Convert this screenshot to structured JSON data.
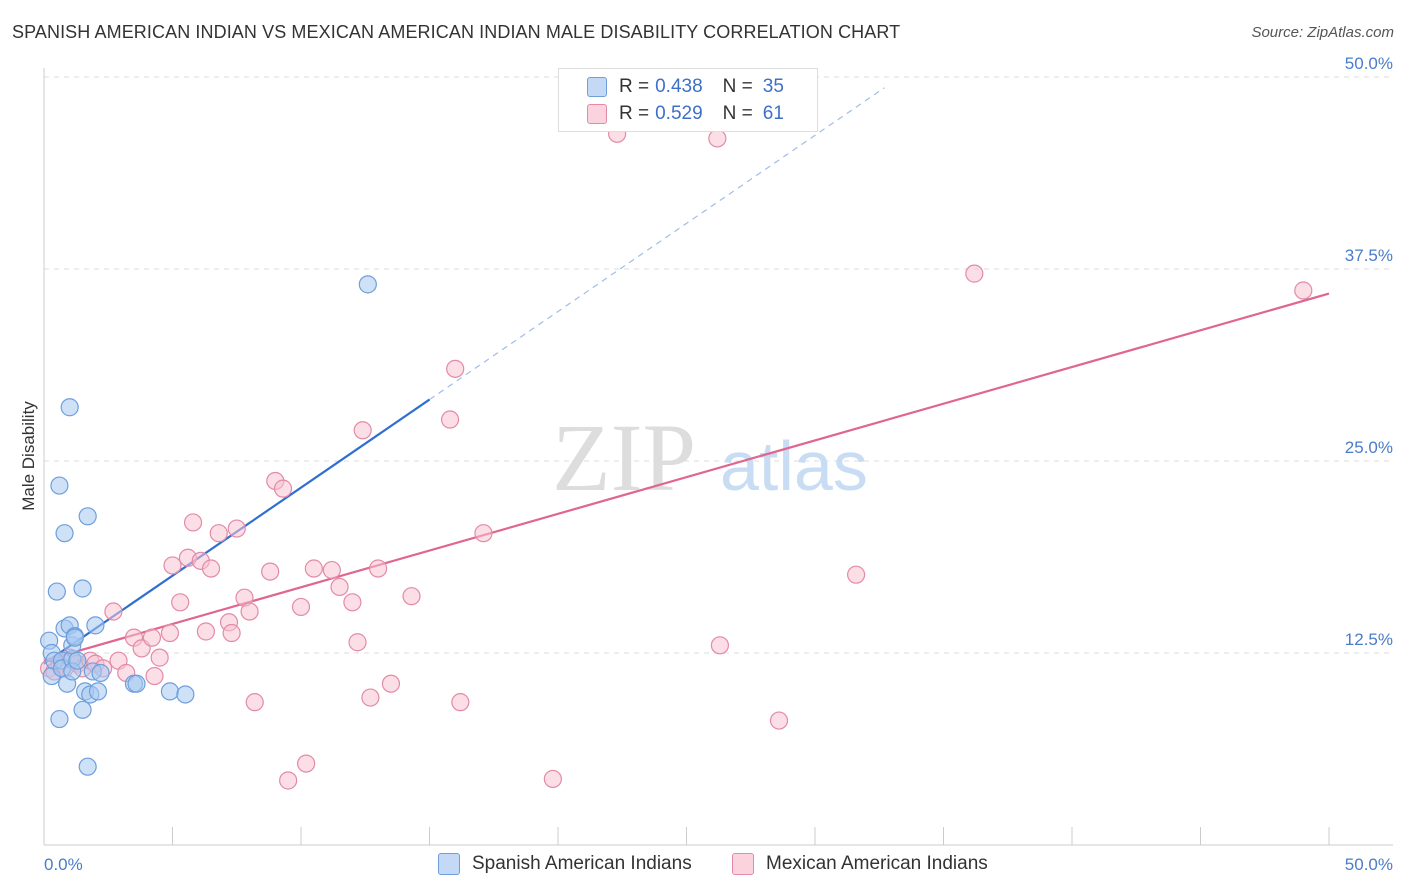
{
  "header": {
    "title": "SPANISH AMERICAN INDIAN VS MEXICAN AMERICAN INDIAN MALE DISABILITY CORRELATION CHART",
    "source": "Source: ZipAtlas.com"
  },
  "watermark": {
    "zip": "ZIP",
    "atlas": "atlas"
  },
  "legend": {
    "rows": [
      {
        "r_label": "R =",
        "r_value": "0.438",
        "n_label": "N =",
        "n_value": "35",
        "color": "#a8c8f0"
      },
      {
        "r_label": "R =",
        "r_value": "0.529",
        "n_label": "N =",
        "n_value": "61",
        "color": "#f5b6c9"
      }
    ]
  },
  "colors": {
    "blue_fill": "#a8c8f0",
    "blue_stroke": "#6e9fdc",
    "blue_line": "#2f6fcf",
    "pink_fill": "#f7c2d2",
    "pink_stroke": "#e38aa8",
    "pink_line": "#e0658f",
    "grid": "#dddddd",
    "tick_text": "#4a7cc9"
  },
  "chart_data": {
    "type": "scatter",
    "title": "SPANISH AMERICAN INDIAN VS MEXICAN AMERICAN INDIAN MALE DISABILITY CORRELATION CHART",
    "xlabel": "",
    "ylabel": "Male Disability",
    "xlim": [
      0,
      50
    ],
    "ylim": [
      0,
      50
    ],
    "x_tick_labels": [
      "0.0%",
      "50.0%"
    ],
    "y_ticks": [
      {
        "value": 12.5,
        "label": "12.5%"
      },
      {
        "value": 25.0,
        "label": "25.0%"
      },
      {
        "value": 37.5,
        "label": "37.5%"
      },
      {
        "value": 50.0,
        "label": "50.0%"
      }
    ],
    "series": [
      {
        "name": "Spanish American Indians",
        "r": 0.438,
        "n": 35,
        "trend": {
          "x0": 0.0,
          "y0": 11.8,
          "x1": 15.0,
          "y1": 29.0,
          "dash_to_x": 32.7,
          "dash_to_y": 49.3
        },
        "points": [
          [
            0.2,
            13.3
          ],
          [
            0.3,
            12.5
          ],
          [
            0.3,
            11.0
          ],
          [
            0.4,
            12.0
          ],
          [
            0.5,
            16.5
          ],
          [
            0.6,
            8.2
          ],
          [
            0.6,
            23.4
          ],
          [
            0.7,
            12.0
          ],
          [
            0.7,
            11.5
          ],
          [
            0.8,
            20.3
          ],
          [
            0.8,
            14.1
          ],
          [
            0.9,
            10.5
          ],
          [
            1.0,
            28.5
          ],
          [
            1.0,
            14.3
          ],
          [
            1.1,
            12.1
          ],
          [
            1.1,
            11.3
          ],
          [
            1.1,
            13.0
          ],
          [
            1.2,
            13.6
          ],
          [
            1.2,
            13.5
          ],
          [
            1.3,
            12.0
          ],
          [
            1.5,
            16.7
          ],
          [
            1.5,
            8.8
          ],
          [
            1.6,
            10.0
          ],
          [
            1.7,
            21.4
          ],
          [
            1.7,
            5.1
          ],
          [
            1.8,
            9.8
          ],
          [
            1.9,
            11.3
          ],
          [
            2.0,
            14.3
          ],
          [
            2.1,
            10.0
          ],
          [
            2.2,
            11.2
          ],
          [
            3.5,
            10.5
          ],
          [
            3.6,
            10.5
          ],
          [
            4.9,
            10.0
          ],
          [
            5.5,
            9.8
          ],
          [
            12.6,
            36.5
          ]
        ]
      },
      {
        "name": "Mexican American Indians",
        "r": 0.529,
        "n": 61,
        "trend": {
          "x0": 0.0,
          "y0": 12.0,
          "x1": 50.0,
          "y1": 35.9
        },
        "points": [
          [
            0.2,
            11.5
          ],
          [
            0.4,
            11.3
          ],
          [
            0.6,
            11.8
          ],
          [
            0.8,
            11.5
          ],
          [
            1.0,
            12.2
          ],
          [
            1.3,
            11.8
          ],
          [
            1.5,
            11.5
          ],
          [
            1.8,
            12.0
          ],
          [
            2.0,
            11.8
          ],
          [
            2.3,
            11.5
          ],
          [
            2.7,
            15.2
          ],
          [
            2.9,
            12.0
          ],
          [
            3.2,
            11.2
          ],
          [
            3.5,
            13.5
          ],
          [
            3.8,
            12.8
          ],
          [
            4.2,
            13.5
          ],
          [
            4.3,
            11.0
          ],
          [
            4.5,
            12.2
          ],
          [
            4.9,
            13.8
          ],
          [
            5.0,
            18.2
          ],
          [
            5.3,
            15.8
          ],
          [
            5.6,
            18.7
          ],
          [
            5.8,
            21.0
          ],
          [
            6.1,
            18.5
          ],
          [
            6.3,
            13.9
          ],
          [
            6.5,
            18.0
          ],
          [
            6.8,
            20.3
          ],
          [
            7.2,
            14.5
          ],
          [
            7.3,
            13.8
          ],
          [
            7.5,
            20.6
          ],
          [
            7.8,
            16.1
          ],
          [
            8.0,
            15.2
          ],
          [
            8.2,
            9.3
          ],
          [
            8.8,
            17.8
          ],
          [
            9.0,
            23.7
          ],
          [
            9.3,
            23.2
          ],
          [
            9.5,
            4.2
          ],
          [
            10.0,
            15.5
          ],
          [
            10.2,
            5.3
          ],
          [
            10.5,
            18.0
          ],
          [
            11.2,
            17.9
          ],
          [
            11.5,
            16.8
          ],
          [
            12.0,
            15.8
          ],
          [
            12.2,
            13.2
          ],
          [
            12.4,
            27.0
          ],
          [
            12.7,
            9.6
          ],
          [
            13.0,
            18.0
          ],
          [
            13.5,
            10.5
          ],
          [
            14.3,
            16.2
          ],
          [
            15.8,
            27.7
          ],
          [
            16.0,
            31.0
          ],
          [
            16.2,
            9.3
          ],
          [
            17.1,
            20.3
          ],
          [
            19.8,
            4.3
          ],
          [
            22.3,
            46.3
          ],
          [
            26.2,
            46.0
          ],
          [
            26.3,
            13.0
          ],
          [
            28.6,
            8.1
          ],
          [
            31.6,
            17.6
          ],
          [
            36.2,
            37.2
          ],
          [
            49.0,
            36.1
          ]
        ]
      }
    ]
  }
}
